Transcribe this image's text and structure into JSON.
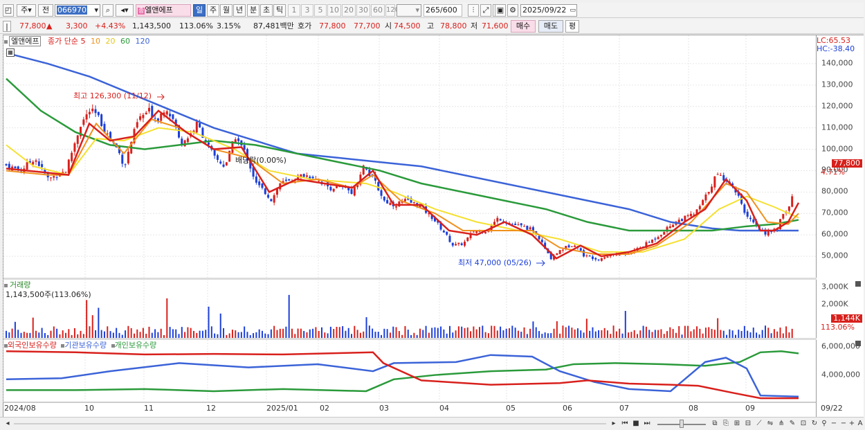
{
  "toolbar": {
    "tab_week": "주",
    "tab_prev": "전",
    "stock_code": "066970",
    "stock_name": "엘앤에프",
    "period_day": "일",
    "period_week": "주",
    "period_month": "월",
    "period_year": "년",
    "period_min": "분",
    "period_sec": "초",
    "period_tick": "틱",
    "nums": [
      "1",
      "3",
      "5",
      "10",
      "20",
      "30",
      "60",
      "120"
    ],
    "count": "265",
    "count_max": "/600",
    "date": "2025/09/22"
  },
  "quote": {
    "price": "77,800",
    "arrow": "▲",
    "change": "3,300",
    "pct": "+4.43%",
    "volume": "1,143,500",
    "vol_ratio": "113.06%",
    "turnover": "3.15%",
    "amount": "87,481백만",
    "hoga_label": "호가",
    "ask": "77,800",
    "bid": "77,700",
    "open_label": "시",
    "open": "74,500",
    "high_label": "고",
    "high": "78,800",
    "low_label": "저",
    "low": "71,600",
    "buy": "매수",
    "sell": "매도",
    "avg": "평"
  },
  "legend": {
    "name": "엘앤에프",
    "ma_prefix": "종가 단순",
    "ma": [
      "5",
      "10",
      "20",
      "60",
      "120"
    ]
  },
  "price_axis": {
    "ticks": [
      "140,000",
      "130,000",
      "120,000",
      "110,000",
      "100,000",
      "90,000",
      "80,000",
      "70,000",
      "60,000",
      "50,000"
    ],
    "lc": "LC:65.53",
    "hc": "HC:-38.40",
    "last": "77,800",
    "last_pct": "4.71%"
  },
  "annotations": {
    "high": "최고 126,300 (11/12)",
    "low": "최저 47,000 (05/26)",
    "div": "배당락(0.00%)"
  },
  "volume_panel": {
    "title": "거래량",
    "subtitle": "1,143,500주(113.06%)",
    "ticks": [
      "3,000K",
      "2,000K"
    ],
    "last": "1,144K",
    "last_pct": "113.06%"
  },
  "holding_panel": {
    "items": [
      "외국인보유수량",
      "기관보유수량",
      "개인보유수량"
    ],
    "ticks": [
      "6,000,000",
      "4,000,000"
    ]
  },
  "xaxis": [
    "2024/08",
    "10",
    "11",
    "12",
    "2025/01",
    "02",
    "03",
    "04",
    "05",
    "06",
    "07",
    "08",
    "09",
    "09/22"
  ],
  "colors": {
    "up": "#d8201c",
    "down": "#1c3fd8",
    "ma5": "#d8201c",
    "ma10": "#f0901c",
    "ma20": "#f5e030",
    "ma60": "#2a9a3a",
    "ma120": "#3b63d8"
  },
  "chart_data": {
    "type": "candlestick",
    "y_range": [
      40000,
      150000
    ],
    "price_path": [
      [
        0,
        93000
      ],
      [
        25,
        90000
      ],
      [
        45,
        96000
      ],
      [
        65,
        86000
      ],
      [
        90,
        90000
      ],
      [
        100,
        100000
      ],
      [
        112,
        112000
      ],
      [
        125,
        118000
      ],
      [
        135,
        116000
      ],
      [
        150,
        107000
      ],
      [
        165,
        100000
      ],
      [
        175,
        92000
      ],
      [
        185,
        104000
      ],
      [
        195,
        114000
      ],
      [
        210,
        118000
      ],
      [
        222,
        114000
      ],
      [
        235,
        120000
      ],
      [
        248,
        112000
      ],
      [
        255,
        103000
      ],
      [
        268,
        106000
      ],
      [
        280,
        112000
      ],
      [
        292,
        104000
      ],
      [
        305,
        96000
      ],
      [
        320,
        92000
      ],
      [
        335,
        106000
      ],
      [
        350,
        98000
      ],
      [
        365,
        84000
      ],
      [
        378,
        80000
      ],
      [
        388,
        76000
      ],
      [
        398,
        84000
      ],
      [
        415,
        85000
      ],
      [
        432,
        88000
      ],
      [
        450,
        87000
      ],
      [
        470,
        82000
      ],
      [
        490,
        82000
      ],
      [
        505,
        80000
      ],
      [
        520,
        92000
      ],
      [
        535,
        86000
      ],
      [
        550,
        76000
      ],
      [
        565,
        74000
      ],
      [
        580,
        76000
      ],
      [
        600,
        74000
      ],
      [
        620,
        68000
      ],
      [
        635,
        62000
      ],
      [
        650,
        55000
      ],
      [
        665,
        56000
      ],
      [
        680,
        62000
      ],
      [
        700,
        62000
      ],
      [
        715,
        68000
      ],
      [
        735,
        65000
      ],
      [
        760,
        63000
      ],
      [
        775,
        58000
      ],
      [
        790,
        49000
      ],
      [
        805,
        53000
      ],
      [
        825,
        56000
      ],
      [
        840,
        50000
      ],
      [
        860,
        49000
      ],
      [
        880,
        51000
      ],
      [
        900,
        51000
      ],
      [
        920,
        54000
      ],
      [
        940,
        58000
      ],
      [
        955,
        62000
      ],
      [
        970,
        66000
      ],
      [
        985,
        68000
      ],
      [
        1000,
        70000
      ],
      [
        1015,
        78000
      ],
      [
        1030,
        88000
      ],
      [
        1045,
        86000
      ],
      [
        1060,
        80000
      ],
      [
        1075,
        68000
      ],
      [
        1090,
        63000
      ],
      [
        1100,
        61000
      ],
      [
        1115,
        62000
      ],
      [
        1125,
        68000
      ],
      [
        1135,
        73000
      ],
      [
        1140,
        77800
      ]
    ],
    "ma5": [
      [
        0,
        91000
      ],
      [
        60,
        89000
      ],
      [
        90,
        88000
      ],
      [
        120,
        112000
      ],
      [
        150,
        104000
      ],
      [
        185,
        106000
      ],
      [
        220,
        118000
      ],
      [
        260,
        108000
      ],
      [
        300,
        100000
      ],
      [
        340,
        101000
      ],
      [
        380,
        80000
      ],
      [
        420,
        86000
      ],
      [
        460,
        84000
      ],
      [
        500,
        82000
      ],
      [
        530,
        90000
      ],
      [
        560,
        74000
      ],
      [
        600,
        74000
      ],
      [
        640,
        62000
      ],
      [
        680,
        60000
      ],
      [
        720,
        66000
      ],
      [
        760,
        60000
      ],
      [
        795,
        49000
      ],
      [
        830,
        55000
      ],
      [
        860,
        50000
      ],
      [
        900,
        52000
      ],
      [
        940,
        56000
      ],
      [
        980,
        66000
      ],
      [
        1010,
        72000
      ],
      [
        1040,
        86000
      ],
      [
        1070,
        76000
      ],
      [
        1090,
        62000
      ],
      [
        1110,
        62000
      ],
      [
        1130,
        66000
      ],
      [
        1145,
        75000
      ]
    ],
    "ma10": [
      [
        0,
        90000
      ],
      [
        60,
        88000
      ],
      [
        90,
        88000
      ],
      [
        130,
        112000
      ],
      [
        170,
        98000
      ],
      [
        210,
        114000
      ],
      [
        250,
        110000
      ],
      [
        300,
        100000
      ],
      [
        350,
        96000
      ],
      [
        400,
        84000
      ],
      [
        450,
        86000
      ],
      [
        500,
        82000
      ],
      [
        530,
        88000
      ],
      [
        570,
        76000
      ],
      [
        620,
        70000
      ],
      [
        660,
        62000
      ],
      [
        700,
        62000
      ],
      [
        760,
        62000
      ],
      [
        800,
        54000
      ],
      [
        850,
        51000
      ],
      [
        900,
        51000
      ],
      [
        940,
        55000
      ],
      [
        990,
        66000
      ],
      [
        1040,
        84000
      ],
      [
        1070,
        80000
      ],
      [
        1100,
        66000
      ],
      [
        1130,
        65000
      ],
      [
        1145,
        70000
      ]
    ],
    "ma20": [
      [
        0,
        102000
      ],
      [
        40,
        92000
      ],
      [
        90,
        88000
      ],
      [
        130,
        105000
      ],
      [
        170,
        104000
      ],
      [
        220,
        110000
      ],
      [
        270,
        108000
      ],
      [
        330,
        100000
      ],
      [
        380,
        90000
      ],
      [
        440,
        86000
      ],
      [
        520,
        84000
      ],
      [
        560,
        80000
      ],
      [
        620,
        72000
      ],
      [
        680,
        66000
      ],
      [
        740,
        62000
      ],
      [
        800,
        58000
      ],
      [
        860,
        52000
      ],
      [
        920,
        52000
      ],
      [
        980,
        58000
      ],
      [
        1030,
        72000
      ],
      [
        1070,
        78000
      ],
      [
        1110,
        73000
      ],
      [
        1145,
        68000
      ]
    ],
    "ma60": [
      [
        0,
        133000
      ],
      [
        50,
        118000
      ],
      [
        100,
        108000
      ],
      [
        150,
        102000
      ],
      [
        200,
        100000
      ],
      [
        250,
        102000
      ],
      [
        300,
        104000
      ],
      [
        360,
        102000
      ],
      [
        420,
        98000
      ],
      [
        480,
        94000
      ],
      [
        540,
        90000
      ],
      [
        600,
        84000
      ],
      [
        660,
        80000
      ],
      [
        720,
        76000
      ],
      [
        780,
        72000
      ],
      [
        840,
        66000
      ],
      [
        900,
        62000
      ],
      [
        960,
        62000
      ],
      [
        1020,
        62000
      ],
      [
        1070,
        64000
      ],
      [
        1110,
        65000
      ],
      [
        1145,
        67000
      ]
    ],
    "ma120": [
      [
        0,
        145000
      ],
      [
        60,
        140000
      ],
      [
        120,
        134000
      ],
      [
        180,
        126000
      ],
      [
        240,
        118000
      ],
      [
        300,
        110000
      ],
      [
        360,
        104000
      ],
      [
        420,
        98000
      ],
      [
        480,
        96000
      ],
      [
        540,
        94000
      ],
      [
        600,
        92000
      ],
      [
        660,
        88000
      ],
      [
        720,
        84000
      ],
      [
        780,
        80000
      ],
      [
        840,
        76000
      ],
      [
        900,
        72000
      ],
      [
        960,
        66000
      ],
      [
        1020,
        63000
      ],
      [
        1060,
        62000
      ],
      [
        1100,
        62000
      ],
      [
        1145,
        62000
      ]
    ],
    "holding_foreign": [
      [
        0,
        0.92
      ],
      [
        100,
        0.9
      ],
      [
        200,
        0.86
      ],
      [
        300,
        0.87
      ],
      [
        400,
        0.86
      ],
      [
        530,
        0.9
      ],
      [
        545,
        0.7
      ],
      [
        600,
        0.38
      ],
      [
        700,
        0.3
      ],
      [
        800,
        0.33
      ],
      [
        840,
        0.38
      ],
      [
        900,
        0.32
      ],
      [
        960,
        0.3
      ],
      [
        1000,
        0.28
      ],
      [
        1050,
        0.15
      ],
      [
        1090,
        0.05
      ],
      [
        1145,
        0.05
      ]
    ],
    "holding_inst": [
      [
        0,
        0.4
      ],
      [
        80,
        0.42
      ],
      [
        150,
        0.55
      ],
      [
        250,
        0.7
      ],
      [
        350,
        0.62
      ],
      [
        450,
        0.68
      ],
      [
        530,
        0.55
      ],
      [
        560,
        0.7
      ],
      [
        650,
        0.72
      ],
      [
        700,
        0.85
      ],
      [
        760,
        0.82
      ],
      [
        800,
        0.55
      ],
      [
        850,
        0.35
      ],
      [
        900,
        0.22
      ],
      [
        960,
        0.18
      ],
      [
        1010,
        0.72
      ],
      [
        1040,
        0.8
      ],
      [
        1070,
        0.6
      ],
      [
        1090,
        0.1
      ],
      [
        1145,
        0.08
      ]
    ],
    "holding_indiv": [
      [
        0,
        0.2
      ],
      [
        100,
        0.2
      ],
      [
        200,
        0.22
      ],
      [
        300,
        0.18
      ],
      [
        400,
        0.22
      ],
      [
        520,
        0.18
      ],
      [
        560,
        0.4
      ],
      [
        620,
        0.48
      ],
      [
        700,
        0.55
      ],
      [
        780,
        0.58
      ],
      [
        820,
        0.68
      ],
      [
        880,
        0.7
      ],
      [
        950,
        0.68
      ],
      [
        1010,
        0.65
      ],
      [
        1060,
        0.72
      ],
      [
        1090,
        0.9
      ],
      [
        1120,
        0.92
      ],
      [
        1145,
        0.88
      ]
    ]
  }
}
